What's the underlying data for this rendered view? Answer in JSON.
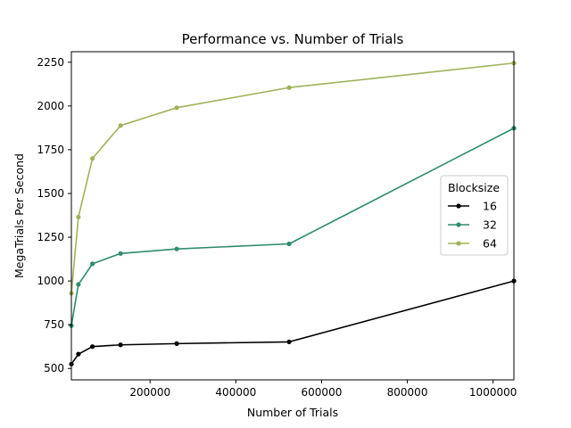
{
  "chart_data": {
    "type": "line",
    "title": "Performance vs. Number of Trials",
    "xlabel": "Number of Trials",
    "ylabel": "MegaTrials Per Second",
    "xlim": [
      16384,
      1048576
    ],
    "ylim": [
      435,
      2310
    ],
    "xticks": [
      200000,
      400000,
      600000,
      800000,
      1000000
    ],
    "xtick_labels": [
      "200000",
      "400000",
      "600000",
      "800000",
      "1000000"
    ],
    "yticks": [
      500,
      750,
      1000,
      1250,
      1500,
      1750,
      2000,
      2250
    ],
    "ytick_labels": [
      "500",
      "750",
      "1000",
      "1250",
      "1500",
      "1750",
      "2000",
      "2250"
    ],
    "grid": false,
    "legend": {
      "title": "Blocksize",
      "position": "center-right"
    },
    "x": [
      16384,
      32768,
      65536,
      131072,
      262144,
      524288,
      1048576
    ],
    "series": [
      {
        "name": "16",
        "color": "#000000",
        "values": [
          525,
          582,
          625,
          635,
          642,
          652,
          1000
        ]
      },
      {
        "name": "32",
        "color": "#2e8b6f",
        "values": [
          745,
          980,
          1098,
          1157,
          1183,
          1212,
          1873
        ]
      },
      {
        "name": "64",
        "color": "#9fb35a",
        "values": [
          930,
          1365,
          1700,
          1888,
          1990,
          2105,
          2245
        ]
      }
    ]
  }
}
